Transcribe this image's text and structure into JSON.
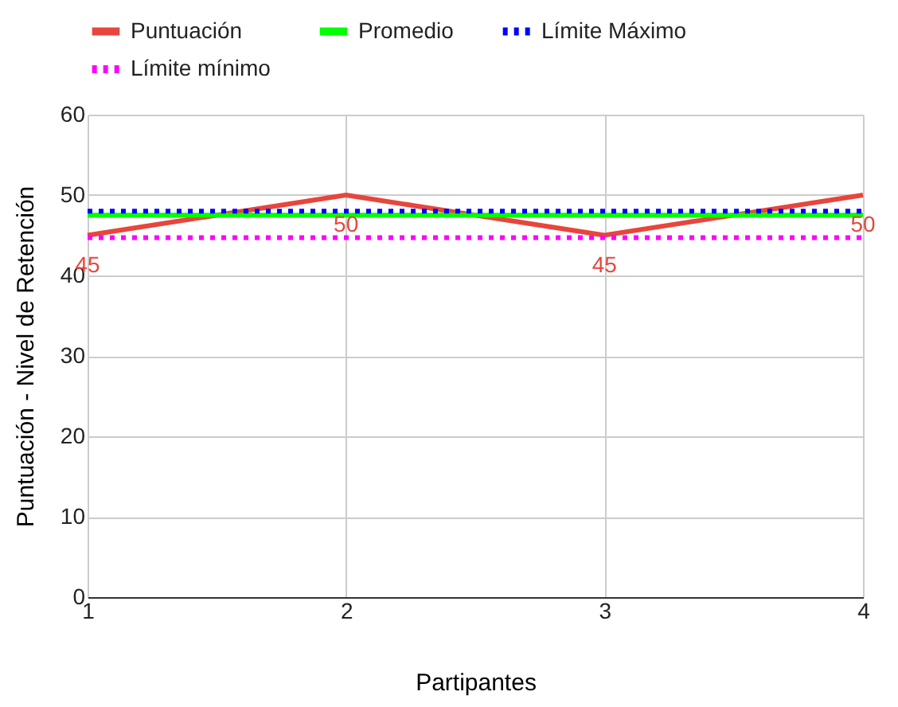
{
  "chart_data": {
    "type": "line",
    "xlabel": "Partipantes",
    "ylabel": "Puntuación - Nivel de Retención",
    "x": [
      1,
      2,
      3,
      4
    ],
    "xlim": [
      1,
      4
    ],
    "xticks": [
      1,
      2,
      3,
      4
    ],
    "ylim": [
      0,
      60
    ],
    "yticks": [
      0,
      10,
      20,
      30,
      40,
      50,
      60
    ],
    "grid": true,
    "legend": "top",
    "marker": "none",
    "series": [
      {
        "name": "Puntuación",
        "color": "#e8453c",
        "values": [
          45,
          50,
          45,
          50
        ],
        "line_style": "solid",
        "value_labels": [
          "45",
          "50",
          "45",
          "50"
        ]
      },
      {
        "name": "Promedio",
        "color": "#00ff00",
        "values": [
          47.5,
          47.5,
          47.5,
          47.5
        ],
        "line_style": "solid"
      },
      {
        "name": "Límite Máximo",
        "color": "#0000ff",
        "values": [
          48,
          48,
          48,
          48
        ],
        "line_style": "dotted"
      },
      {
        "name": "Límite mínimo",
        "color": "#ff00ff",
        "values": [
          44.7,
          44.7,
          44.7,
          44.7
        ],
        "line_style": "dotted"
      }
    ]
  }
}
